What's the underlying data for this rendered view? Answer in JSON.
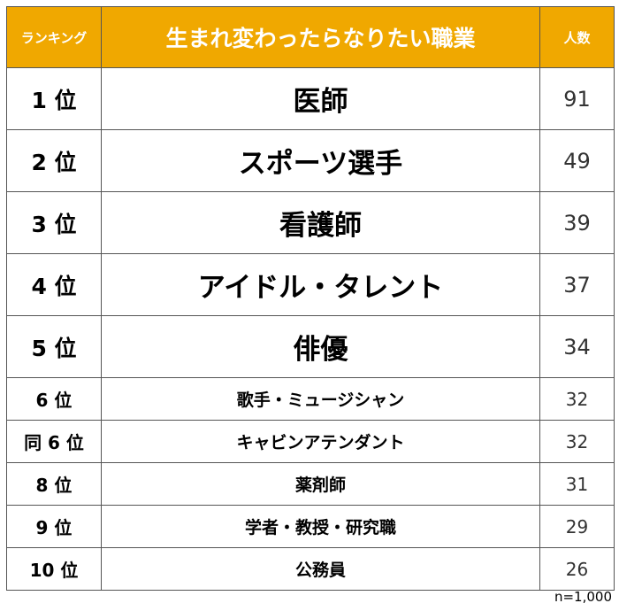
{
  "header": {
    "rank_label": "ランキング",
    "job_label": "生まれ変わったらなりたい職業",
    "count_label": "人数"
  },
  "rows": [
    {
      "rank": "1 位",
      "job": "医師",
      "count": "91"
    },
    {
      "rank": "2 位",
      "job": "スポーツ選手",
      "count": "49"
    },
    {
      "rank": "3 位",
      "job": "看護師",
      "count": "39"
    },
    {
      "rank": "4 位",
      "job": "アイドル・タレント",
      "count": "37"
    },
    {
      "rank": "5 位",
      "job": "俳優",
      "count": "34"
    },
    {
      "rank": "6 位",
      "job": "歌手・ミュージシャン",
      "count": "32"
    },
    {
      "rank": "同 6 位",
      "job": "キャビンアテンダント",
      "count": "32"
    },
    {
      "rank": "8 位",
      "job": "薬剤師",
      "count": "31"
    },
    {
      "rank": "9 位",
      "job": "学者・教授・研究職",
      "count": "29"
    },
    {
      "rank": "10 位",
      "job": "公務員",
      "count": "26"
    }
  ],
  "footnote": "n=1,000",
  "colors": {
    "header_bg": "#f0a800",
    "header_text": "#ffffff",
    "border": "#555555"
  }
}
